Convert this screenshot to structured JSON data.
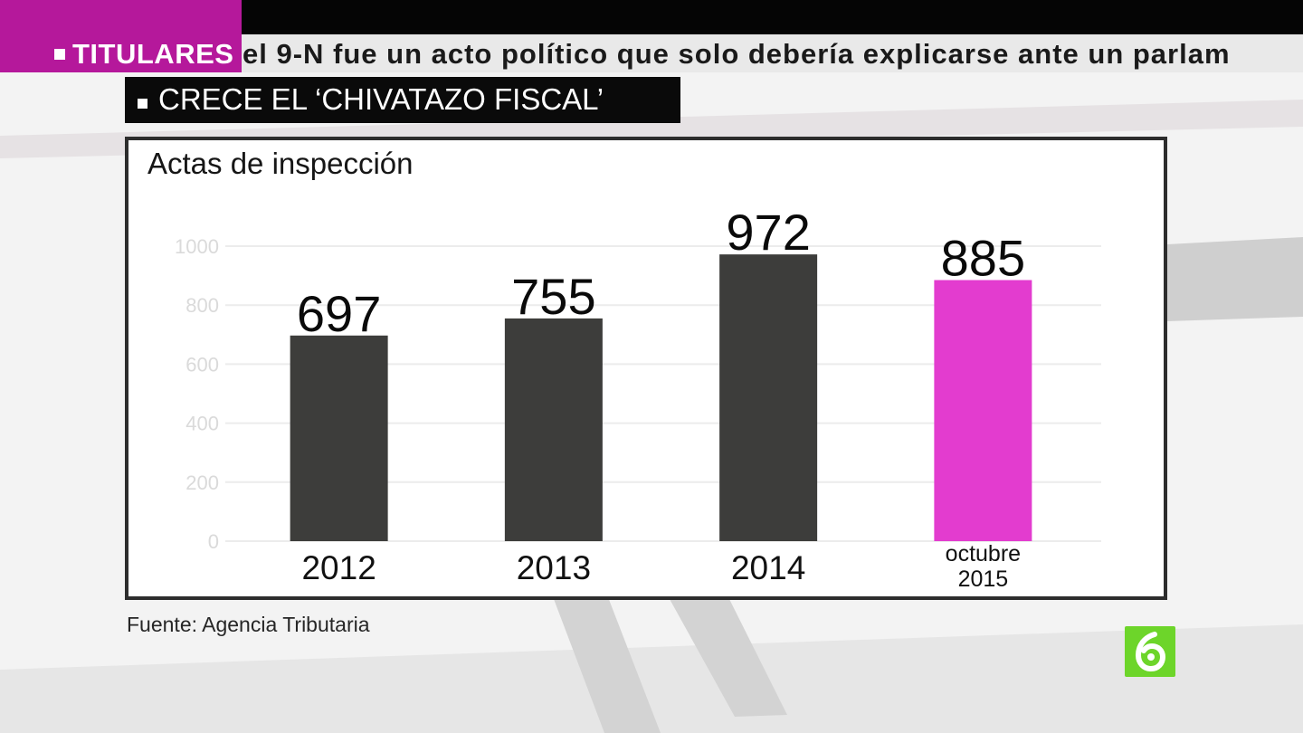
{
  "ticker": {
    "tag": "TITULARES",
    "text": "el 9-N fue un acto político que solo debería explicarse ante un parlam"
  },
  "headline": "CRECE EL ‘CHIVATAZO FISCAL’",
  "source": "Fuente: Agencia Tributaria",
  "logo": {
    "icon": "la-sexta-logo-icon",
    "color": "#6dd52a"
  },
  "colors": {
    "bar": "#3d3d3b",
    "highlight": "#e33ccf",
    "accent": "#b5189b"
  },
  "chart_data": {
    "type": "bar",
    "title": "Actas de inspección",
    "xlabel": "",
    "ylabel": "",
    "ylim": [
      0,
      1000
    ],
    "yticks": [
      0,
      200,
      400,
      600,
      800,
      1000
    ],
    "grid": true,
    "categories": [
      "2012",
      "2013",
      "2014",
      "octubre 2015"
    ],
    "category_lines": [
      [
        "2012"
      ],
      [
        "2013"
      ],
      [
        "2014"
      ],
      [
        "octubre",
        "2015"
      ]
    ],
    "values": [
      697,
      755,
      972,
      885
    ],
    "data_labels": [
      "697",
      "755",
      "972",
      "885"
    ],
    "highlight_index": 3
  }
}
